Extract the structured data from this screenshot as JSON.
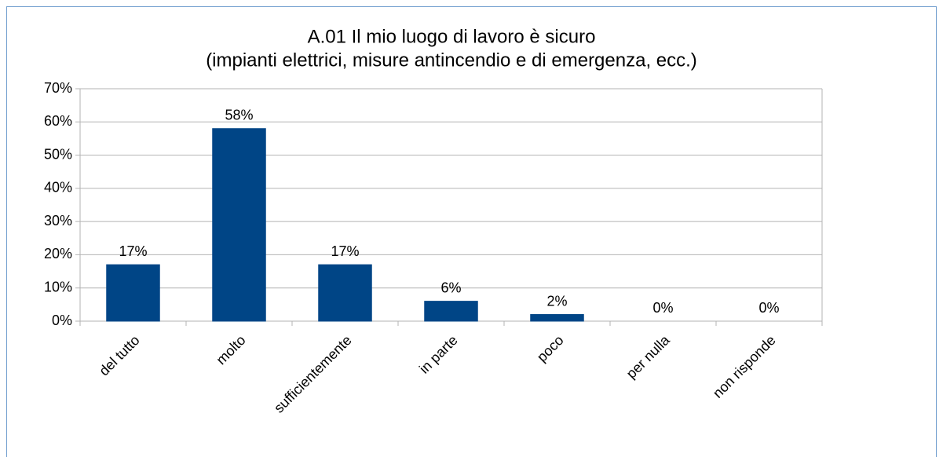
{
  "chart_data": {
    "type": "bar",
    "title": "A.01 Il mio luogo di lavoro è sicuro",
    "subtitle": "(impianti elettrici, misure antincendio e di emergenza, ecc.)",
    "categories": [
      "del tutto",
      "molto",
      "sufficientemente",
      "in parte",
      "poco",
      "per nulla",
      "non risponde"
    ],
    "values": [
      17,
      58,
      17,
      6,
      2,
      0,
      0
    ],
    "value_labels": [
      "17%",
      "58%",
      "17%",
      "6%",
      "2%",
      "0%",
      "0%"
    ],
    "color": "#004586",
    "ylim": [
      0,
      70
    ],
    "yticks": [
      {
        "value": 0,
        "label": "0%"
      },
      {
        "value": 10,
        "label": "10%"
      },
      {
        "value": 20,
        "label": "20%"
      },
      {
        "value": 30,
        "label": "30%"
      },
      {
        "value": 40,
        "label": "40%"
      },
      {
        "value": 50,
        "label": "50%"
      },
      {
        "value": 60,
        "label": "60%"
      },
      {
        "value": 70,
        "label": "70%"
      }
    ],
    "grid": true
  }
}
